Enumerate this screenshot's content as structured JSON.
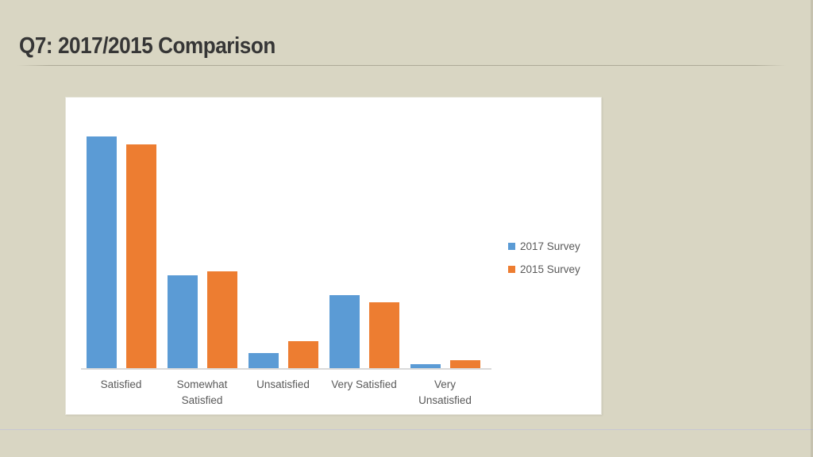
{
  "slide": {
    "title": "Q7: 2017/2015 Comparison"
  },
  "theme": {
    "background": "#d9d6c3",
    "panel_background": "#ffffff",
    "title_color": "#363636",
    "label_color": "#595959",
    "axis_line_color": "#d9d9d9",
    "accent_blue": "#5b9bd5",
    "accent_orange": "#ed7d31"
  },
  "chart_data": {
    "type": "bar",
    "title": "",
    "xlabel": "",
    "ylabel": "",
    "categories": [
      "Satisfied",
      "Somewhat\nSatisfied",
      "Unsatisfied",
      "Very Satisfied",
      "Very\nUnsatisfied"
    ],
    "series": [
      {
        "name": "2017 Survey",
        "color": "#5b9bd5",
        "values": [
          60,
          24,
          4,
          19,
          1
        ]
      },
      {
        "name": "2015 Survey",
        "color": "#ed7d31",
        "values": [
          58,
          25,
          7,
          17,
          2
        ]
      }
    ],
    "ylim": [
      0,
      70
    ],
    "grid": false,
    "value_axis_visible": false,
    "legend_position": "right-center",
    "values_note": "values estimated from bar heights; no value axis labels are shown in the image"
  }
}
